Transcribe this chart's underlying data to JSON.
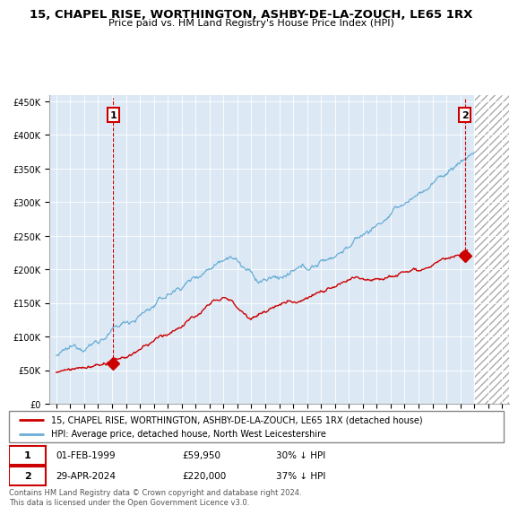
{
  "title": "15, CHAPEL RISE, WORTHINGTON, ASHBY-DE-LA-ZOUCH, LE65 1RX",
  "subtitle": "Price paid vs. HM Land Registry's House Price Index (HPI)",
  "legend_line1": "15, CHAPEL RISE, WORTHINGTON, ASHBY-DE-LA-ZOUCH, LE65 1RX (detached house)",
  "legend_line2": "HPI: Average price, detached house, North West Leicestershire",
  "footnote": "Contains HM Land Registry data © Crown copyright and database right 2024.\nThis data is licensed under the Open Government Licence v3.0.",
  "point1_date": "01-FEB-1999",
  "point1_price": "£59,950",
  "point1_hpi": "30% ↓ HPI",
  "point2_date": "29-APR-2024",
  "point2_price": "£220,000",
  "point2_hpi": "37% ↓ HPI",
  "hpi_color": "#6baed6",
  "price_color": "#cc0000",
  "background_color": "#dce9f5",
  "grid_color": "#aaaaaa",
  "ylim": [
    0,
    460000
  ],
  "yticks": [
    0,
    50000,
    100000,
    150000,
    200000,
    250000,
    300000,
    350000,
    400000,
    450000
  ],
  "xlim_start": 1994.5,
  "xlim_end": 2027.5,
  "point1_x": 1999.08,
  "point1_y": 59950,
  "point2_x": 2024.33,
  "point2_y": 220000
}
